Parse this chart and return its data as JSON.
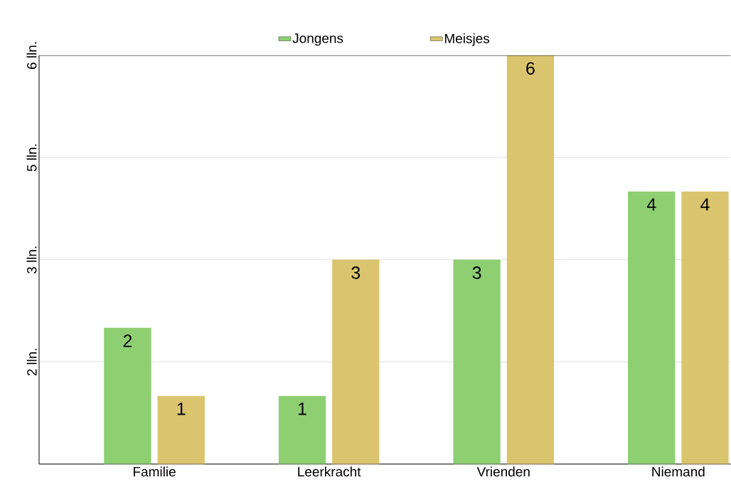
{
  "chart_data": {
    "type": "bar",
    "categories": [
      "Familie",
      "Leerkracht",
      "Vrienden",
      "Niemand"
    ],
    "series": [
      {
        "name": "Jongens",
        "color": "#8ecf72",
        "values": [
          2,
          1,
          3,
          4
        ]
      },
      {
        "name": "Meisjes",
        "color": "#dbc46e",
        "values": [
          1,
          3,
          6,
          4
        ]
      }
    ],
    "ylim": [
      0,
      6
    ],
    "yticks": [
      {
        "value": 1.5,
        "label": "2 lln."
      },
      {
        "value": 3,
        "label": "3 lln."
      },
      {
        "value": 4.5,
        "label": "5 lln."
      },
      {
        "value": 6,
        "label": "6 lln."
      }
    ],
    "grid": "y",
    "legend": "top",
    "data_labels": true
  }
}
